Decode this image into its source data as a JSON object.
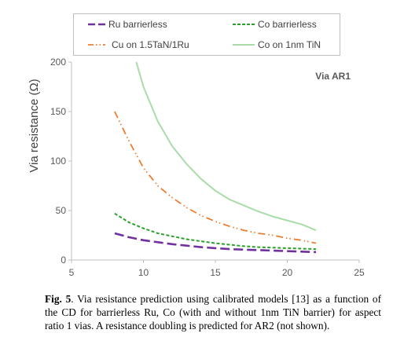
{
  "chart_data": {
    "type": "line",
    "ylabel": "Via resistance (Ω)",
    "xlabel": "",
    "xlim": [
      5,
      25
    ],
    "ylim": [
      0,
      200
    ],
    "xticks": [
      5,
      10,
      15,
      20,
      25
    ],
    "yticks": [
      0,
      50,
      100,
      150,
      200
    ],
    "annotation": "Via AR1",
    "grid": false,
    "legend_position": "top",
    "series": [
      {
        "name": "Ru barrierless",
        "color": "#7030a0",
        "dash": "long-dash",
        "x": [
          8,
          9,
          10,
          11,
          12,
          13,
          14,
          15,
          16,
          17,
          18,
          19,
          20,
          21,
          22
        ],
        "y": [
          27,
          23,
          20,
          18,
          16,
          14.5,
          13,
          12,
          11,
          10.5,
          10,
          9.5,
          9,
          8.5,
          8
        ]
      },
      {
        "name": "Co barrierless",
        "color": "#2ca02c",
        "dash": "short-dash",
        "x": [
          8,
          9,
          10,
          11,
          12,
          13,
          14,
          15,
          16,
          17,
          18,
          19,
          20,
          21,
          22
        ],
        "y": [
          47,
          38,
          32,
          27,
          24,
          21,
          19,
          17,
          15.5,
          14,
          13,
          12.5,
          12,
          11.5,
          11
        ]
      },
      {
        "name": "Cu on 1.5TaN/1Ru",
        "color": "#ed7d31",
        "dash": "dash-dot-dot",
        "x": [
          8,
          9,
          10,
          11,
          12,
          13,
          14,
          15,
          16,
          17,
          18,
          19,
          20,
          21,
          22
        ],
        "y": [
          150,
          120,
          93,
          75,
          63,
          53,
          45,
          39,
          34,
          30,
          27,
          25,
          22,
          20,
          17
        ]
      },
      {
        "name": "Co on 1nm TiN",
        "color": "#a9dca9",
        "dash": "solid",
        "x": [
          9.5,
          10,
          11,
          12,
          13,
          14,
          15,
          16,
          17,
          18,
          19,
          20,
          21,
          22
        ],
        "y": [
          200,
          175,
          140,
          115,
          97,
          82,
          70,
          61,
          55,
          49,
          44,
          40,
          36,
          30
        ]
      }
    ]
  },
  "caption": {
    "label": "Fig. 5",
    "text": ". Via resistance prediction using calibrated models [13] as a function of the CD for barrierless Ru, Co (with and without 1nm TiN barrier) for aspect ratio 1 vias. A resistance doubling is predicted for AR2 (not shown)."
  }
}
